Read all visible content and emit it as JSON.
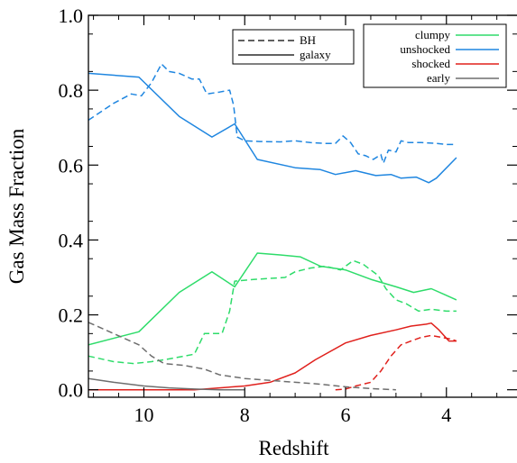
{
  "chart_data": {
    "type": "line",
    "title": "",
    "xlabel": "Redshift",
    "ylabel": "Gas Mass Fraction",
    "xlim": [
      11.1,
      2.6
    ],
    "ylim": [
      -0.02,
      1.0
    ],
    "x_reversed": true,
    "grid": false,
    "xticks": [
      {
        "value": 10,
        "label": "10"
      },
      {
        "value": 8,
        "label": "8"
      },
      {
        "value": 6,
        "label": "6"
      },
      {
        "value": 4,
        "label": "4"
      }
    ],
    "yticks": [
      {
        "value": 0.0,
        "label": "0.0"
      },
      {
        "value": 0.2,
        "label": "0.2"
      },
      {
        "value": 0.4,
        "label": "0.4"
      },
      {
        "value": 0.6,
        "label": "0.6"
      },
      {
        "value": 0.8,
        "label": "0.8"
      },
      {
        "value": 1.0,
        "label": "1.0"
      }
    ],
    "legends": {
      "linestyle": {
        "placement": "top-center",
        "entries": [
          {
            "label": "BH",
            "dash": "dashed"
          },
          {
            "label": "galaxy",
            "dash": "solid"
          }
        ]
      },
      "component": {
        "placement": "top-right",
        "entries": [
          {
            "label": "clumpy",
            "color": "#2edc6a"
          },
          {
            "label": "unshocked",
            "color": "#1f86e0"
          },
          {
            "label": "shocked",
            "color": "#e0201c"
          },
          {
            "label": "early",
            "color": "#6e6e6e"
          }
        ]
      }
    },
    "series": [
      {
        "component": "unshocked",
        "kind": "galaxy",
        "color": "#1f86e0",
        "dash": "solid",
        "x": [
          11.1,
          10.1,
          9.3,
          8.65,
          8.2,
          7.75,
          7.0,
          6.5,
          6.2,
          5.8,
          5.4,
          5.1,
          4.9,
          4.6,
          4.35,
          4.2,
          3.8
        ],
        "y": [
          0.845,
          0.835,
          0.73,
          0.675,
          0.71,
          0.615,
          0.593,
          0.588,
          0.575,
          0.585,
          0.572,
          0.575,
          0.565,
          0.568,
          0.553,
          0.565,
          0.62
        ]
      },
      {
        "component": "clumpy",
        "kind": "galaxy",
        "color": "#2edc6a",
        "dash": "solid",
        "x": [
          11.1,
          10.1,
          9.3,
          8.65,
          8.2,
          7.75,
          7.3,
          6.9,
          6.5,
          6.0,
          5.5,
          5.0,
          4.65,
          4.3,
          4.05,
          3.8
        ],
        "y": [
          0.12,
          0.155,
          0.26,
          0.315,
          0.275,
          0.365,
          0.36,
          0.355,
          0.33,
          0.32,
          0.295,
          0.275,
          0.26,
          0.27,
          0.255,
          0.24
        ]
      },
      {
        "component": "shocked",
        "kind": "galaxy",
        "color": "#e0201c",
        "dash": "solid",
        "x": [
          11.1,
          10.0,
          9.5,
          9.0,
          8.5,
          8.0,
          7.5,
          7.0,
          6.6,
          6.0,
          5.5,
          5.0,
          4.7,
          4.4,
          4.3,
          4.15,
          3.95,
          3.8
        ],
        "y": [
          0.0,
          0.0,
          0.0,
          0.0,
          0.005,
          0.01,
          0.02,
          0.045,
          0.08,
          0.125,
          0.145,
          0.16,
          0.17,
          0.175,
          0.178,
          0.16,
          0.13,
          0.13
        ]
      },
      {
        "component": "early",
        "kind": "galaxy",
        "color": "#6e6e6e",
        "dash": "solid",
        "x": [
          11.1,
          10.6,
          10.0,
          9.5,
          9.0,
          8.5,
          8.0
        ],
        "y": [
          0.03,
          0.02,
          0.01,
          0.005,
          0.002,
          0.0,
          0.0
        ]
      },
      {
        "component": "unshocked",
        "kind": "BH",
        "color": "#1f86e0",
        "dash": "dashed",
        "x": [
          11.1,
          10.6,
          10.25,
          10.05,
          9.85,
          9.65,
          9.5,
          9.3,
          9.05,
          8.9,
          8.75,
          8.5,
          8.3,
          8.22,
          8.15,
          8.0,
          7.7,
          7.3,
          7.0,
          6.7,
          6.4,
          6.2,
          6.05,
          5.9,
          5.75,
          5.6,
          5.45,
          5.3,
          5.25,
          5.15,
          5.0,
          4.9,
          4.75,
          4.5,
          4.2,
          4.0,
          3.8
        ],
        "y": [
          0.72,
          0.765,
          0.79,
          0.785,
          0.82,
          0.87,
          0.85,
          0.845,
          0.83,
          0.83,
          0.79,
          0.795,
          0.8,
          0.76,
          0.675,
          0.665,
          0.663,
          0.662,
          0.665,
          0.66,
          0.658,
          0.658,
          0.678,
          0.66,
          0.63,
          0.625,
          0.615,
          0.628,
          0.605,
          0.64,
          0.635,
          0.665,
          0.66,
          0.66,
          0.658,
          0.655,
          0.655
        ]
      },
      {
        "component": "clumpy",
        "kind": "BH",
        "color": "#2edc6a",
        "dash": "dashed",
        "x": [
          11.1,
          10.6,
          10.2,
          9.85,
          9.6,
          9.4,
          9.2,
          9.0,
          8.8,
          8.6,
          8.45,
          8.3,
          8.2,
          7.8,
          7.2,
          7.0,
          6.7,
          6.4,
          6.1,
          5.85,
          5.65,
          5.5,
          5.35,
          5.2,
          5.0,
          4.8,
          4.55,
          4.3,
          4.0,
          3.8
        ],
        "y": [
          0.09,
          0.075,
          0.07,
          0.075,
          0.08,
          0.085,
          0.09,
          0.095,
          0.15,
          0.15,
          0.15,
          0.21,
          0.29,
          0.295,
          0.3,
          0.315,
          0.325,
          0.33,
          0.32,
          0.345,
          0.335,
          0.32,
          0.305,
          0.27,
          0.24,
          0.23,
          0.21,
          0.215,
          0.21,
          0.21
        ]
      },
      {
        "component": "shocked",
        "kind": "BH",
        "color": "#e0201c",
        "dash": "dashed",
        "x": [
          6.2,
          6.0,
          5.8,
          5.5,
          5.3,
          5.1,
          4.9,
          4.7,
          4.5,
          4.3,
          4.1,
          3.9,
          3.8
        ],
        "y": [
          0.0,
          0.002,
          0.01,
          0.02,
          0.05,
          0.09,
          0.12,
          0.13,
          0.14,
          0.145,
          0.14,
          0.135,
          0.13
        ]
      },
      {
        "component": "early",
        "kind": "BH",
        "color": "#6e6e6e",
        "dash": "dashed",
        "x": [
          11.1,
          10.6,
          10.1,
          9.85,
          9.6,
          9.2,
          8.8,
          8.5,
          8.0,
          7.5,
          7.0,
          6.5,
          6.0,
          5.5,
          5.0
        ],
        "y": [
          0.18,
          0.15,
          0.12,
          0.09,
          0.07,
          0.065,
          0.055,
          0.04,
          0.03,
          0.025,
          0.02,
          0.015,
          0.008,
          0.003,
          0.0
        ]
      }
    ]
  }
}
